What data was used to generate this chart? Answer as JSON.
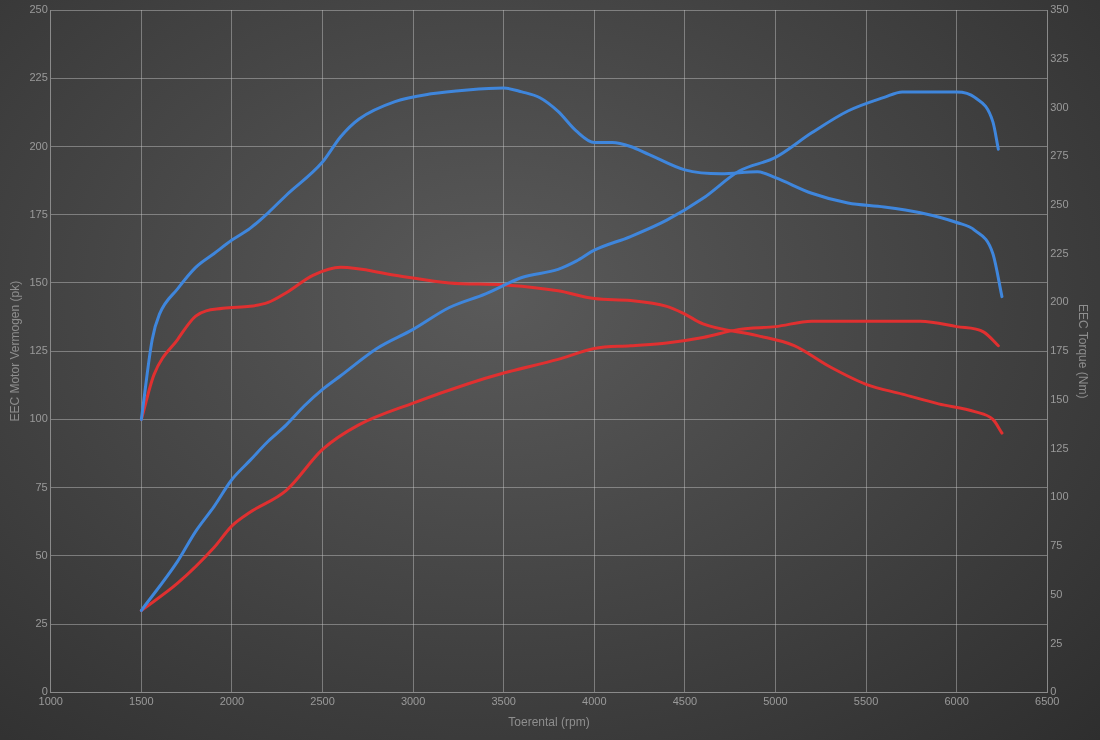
{
  "chart_data": {
    "type": "line",
    "xlabel": "Toerental (rpm)",
    "ylabel": "EEC Motor Vermogen (pk)",
    "y2label": "EEC Torque (Nm)",
    "xlim": [
      1000,
      6500
    ],
    "xticks": [
      1000,
      1500,
      2000,
      2500,
      3000,
      3500,
      4000,
      4500,
      5000,
      5500,
      6000,
      6500
    ],
    "ylim": [
      0,
      250
    ],
    "yticks": [
      0,
      25,
      50,
      75,
      100,
      125,
      150,
      175,
      200,
      225,
      250
    ],
    "y2lim": [
      0,
      350
    ],
    "y2ticks": [
      0,
      25,
      50,
      75,
      100,
      125,
      150,
      175,
      200,
      225,
      250,
      275,
      300,
      325,
      350
    ],
    "grid": true,
    "legend": false,
    "marker": "none",
    "line_style": "solid",
    "series": [
      {
        "color": "#3f86dc",
        "axis": "y2",
        "x": [
          1500,
          1560,
          1600,
          1700,
          1800,
          1900,
          2000,
          2100,
          2200,
          2300,
          2500,
          2600,
          2700,
          2900,
          3100,
          3300,
          3500,
          3600,
          3700,
          3800,
          3900,
          4000,
          4100,
          4200,
          4300,
          4500,
          4700,
          4900,
          5000,
          5200,
          5400,
          5600,
          5800,
          6000,
          6100,
          6200,
          6250
        ],
        "values": [
          140,
          181,
          194,
          207,
          218,
          225,
          232,
          238,
          246,
          255,
          272,
          285,
          294,
          303,
          307,
          309,
          310,
          308,
          305,
          298,
          288,
          282,
          282,
          280,
          276,
          268,
          266,
          267,
          264,
          256,
          251,
          249,
          246,
          241,
          237,
          225,
          203
        ]
      },
      {
        "color": "#3f86dc",
        "x": [
          1500,
          1700,
          1800,
          1900,
          2000,
          2100,
          2200,
          2300,
          2400,
          2500,
          2600,
          2800,
          3000,
          3200,
          3400,
          3600,
          3800,
          3900,
          4000,
          4200,
          4400,
          4600,
          4800,
          5000,
          5200,
          5400,
          5600,
          5700,
          6000,
          6100,
          6200,
          6230
        ],
        "values": [
          30,
          48,
          59,
          68,
          78,
          85,
          92,
          98,
          105,
          111,
          116,
          126,
          133,
          141,
          146,
          152,
          155,
          158,
          162,
          167,
          173,
          181,
          191,
          196,
          205,
          213,
          218,
          220,
          220,
          218,
          209,
          199
        ]
      },
      {
        "color": "#e03030",
        "x": [
          1500,
          1700,
          1900,
          2000,
          2100,
          2300,
          2500,
          2700,
          3000,
          3300,
          3500,
          3800,
          4000,
          4200,
          4400,
          4600,
          4800,
          5000,
          5200,
          5600,
          5800,
          6000,
          6150,
          6230
        ],
        "values": [
          30,
          40,
          53,
          61,
          66,
          74,
          89,
          98,
          106,
          113,
          117,
          122,
          126,
          127,
          128,
          130,
          133,
          134,
          136,
          136,
          136,
          134,
          132,
          127
        ]
      },
      {
        "color": "#e03030",
        "axis": "y2",
        "x": [
          1500,
          1570,
          1700,
          1800,
          1950,
          2100,
          2200,
          2300,
          2450,
          2600,
          2900,
          3200,
          3500,
          3800,
          4000,
          4200,
          4400,
          4500,
          4600,
          4900,
          5100,
          5300,
          5500,
          5700,
          5900,
          6100,
          6200,
          6250
        ],
        "values": [
          140,
          163,
          181,
          193,
          197,
          198,
          200,
          205,
          214,
          218,
          214,
          210,
          209,
          206,
          202,
          201,
          198,
          194,
          189,
          183,
          178,
          167,
          158,
          153,
          148,
          144,
          140,
          133
        ]
      }
    ]
  }
}
